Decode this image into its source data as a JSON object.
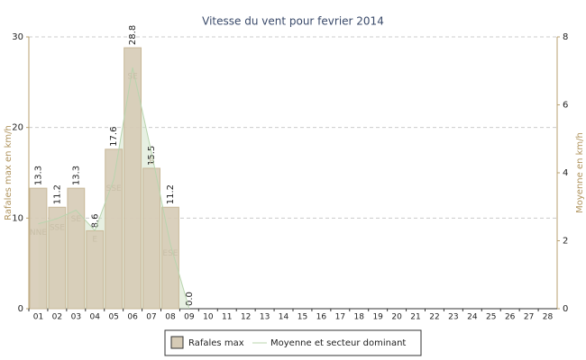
{
  "chart_data": {
    "type": "bar",
    "title": "Vitesse du vent pour fevrier 2014",
    "categories": [
      "01",
      "02",
      "03",
      "04",
      "05",
      "06",
      "07",
      "08",
      "09",
      "10",
      "11",
      "12",
      "13",
      "14",
      "15",
      "16",
      "17",
      "18",
      "19",
      "20",
      "21",
      "22",
      "23",
      "24",
      "25",
      "26",
      "27",
      "28"
    ],
    "series": [
      {
        "name": "Rafales max",
        "color": "#d6cbb6",
        "values": [
          13.3,
          11.2,
          13.3,
          8.6,
          17.6,
          28.8,
          15.5,
          11.2,
          0.0,
          null,
          null,
          null,
          null,
          null,
          null,
          null,
          null,
          null,
          null,
          null,
          null,
          null,
          null,
          null,
          null,
          null,
          null,
          null
        ],
        "value_labels": [
          "13.3",
          "11.2",
          "13.3",
          "8.6",
          "17.6",
          "28.8",
          "15.5",
          "11.2",
          "0.0",
          null,
          null,
          null,
          null,
          null,
          null,
          null,
          null,
          null,
          null,
          null,
          null,
          null,
          null,
          null,
          null,
          null,
          null,
          null
        ]
      },
      {
        "name": "Moyenne et secteur dominant",
        "color": "#cfe2c6",
        "axis": "y2",
        "values": [
          2.5,
          2.65,
          2.9,
          2.3,
          3.8,
          7.1,
          4.6,
          1.9,
          0,
          null,
          null,
          null,
          null,
          null,
          null,
          null,
          null,
          null,
          null,
          null,
          null,
          null,
          null,
          null,
          null,
          null,
          null,
          null
        ],
        "labels": [
          "NNE",
          "SSE",
          "SE",
          "E",
          "SSE",
          "SE",
          "E",
          "ESE",
          null,
          null,
          null,
          null,
          null,
          null,
          null,
          null,
          null,
          null,
          null,
          null,
          null,
          null,
          null,
          null,
          null,
          null,
          null,
          null
        ]
      }
    ],
    "ylabel": "Rafales max en km/h",
    "y2label": "Moyenne en km/h",
    "ylim": [
      0,
      30
    ],
    "yticks": [
      0,
      10,
      20,
      30
    ],
    "y2lim": [
      0,
      8
    ],
    "y2ticks": [
      0,
      2,
      4,
      6,
      8
    ],
    "grid": true,
    "legend": "bottom"
  }
}
